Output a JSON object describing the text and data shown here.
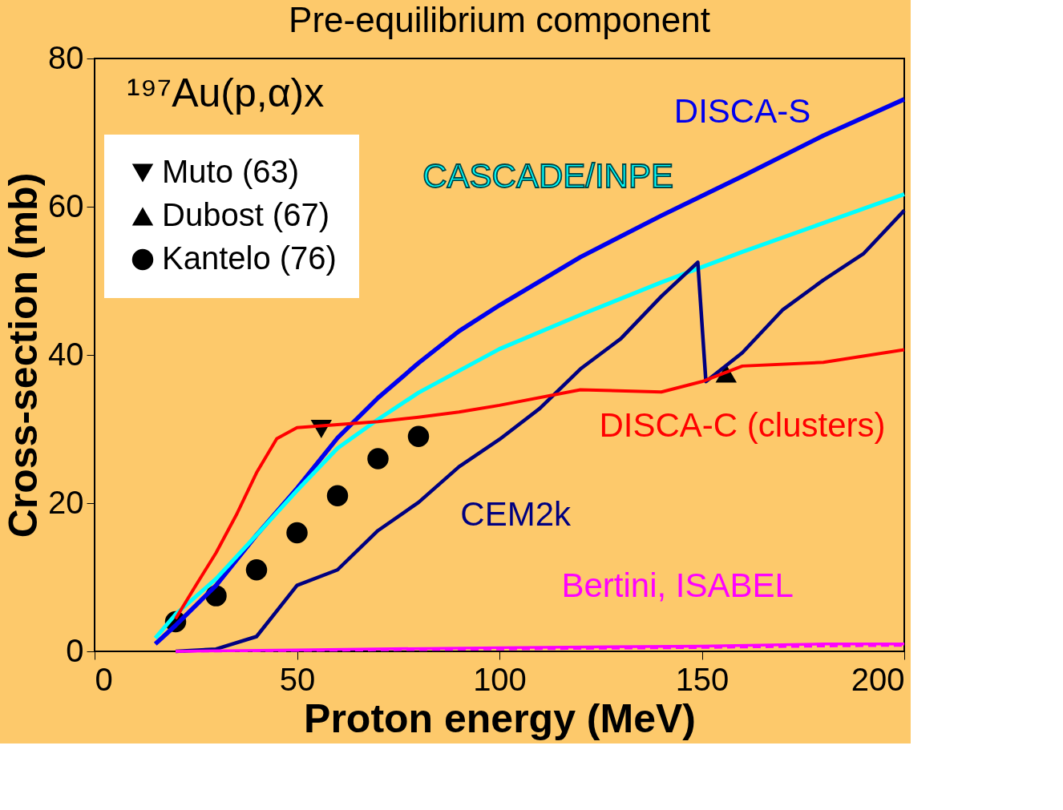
{
  "chart_data": {
    "type": "line",
    "title": "Pre-equilibrium component",
    "xlabel": "Proton energy (MeV)",
    "ylabel": "Cross-section (mb)",
    "xlim": [
      0,
      200
    ],
    "xticks": [
      0,
      50,
      100,
      150,
      200
    ],
    "ylim": [
      0,
      80
    ],
    "yticks": [
      0,
      20,
      40,
      60,
      80
    ],
    "grid": false,
    "legend": "top left",
    "annotations": [
      "¹⁹⁷Au(p,α)x"
    ],
    "series": [
      {
        "name": "DISCA-S",
        "color": "#0000ee",
        "type": "line",
        "line_style": "solid",
        "x": [
          15,
          20,
          30,
          40,
          50,
          60,
          70,
          80,
          90,
          100,
          120,
          140,
          160,
          180,
          200
        ],
        "values": [
          1,
          3.5,
          8.9,
          15.7,
          22,
          28.8,
          34.2,
          38.9,
          43.2,
          46.7,
          53.2,
          58.8,
          64.1,
          69.6,
          74.5
        ]
      },
      {
        "name": "CASCADE/INPE",
        "color": "#00ffff",
        "type": "line",
        "line_style": "solid",
        "x": [
          15,
          20,
          30,
          40,
          50,
          60,
          70,
          80,
          100,
          120,
          140,
          160,
          180,
          200
        ],
        "values": [
          1.8,
          5,
          9.8,
          15.7,
          21.7,
          27.4,
          31.3,
          34.9,
          40.8,
          45.4,
          49.8,
          53.9,
          57.8,
          61.7
        ]
      },
      {
        "name": "CEM2k",
        "color": "#000080",
        "type": "line",
        "line_style": "solid",
        "x": [
          20,
          30,
          40,
          50,
          60,
          70,
          80,
          90,
          100,
          110,
          120,
          130,
          140,
          149,
          151,
          160,
          170,
          180,
          190,
          200
        ],
        "values": [
          0,
          0.3,
          2,
          8.9,
          11,
          16.3,
          20.1,
          24.9,
          28.6,
          32.8,
          38.1,
          42.2,
          47.9,
          52.5,
          36.4,
          40.3,
          46.1,
          50.1,
          53.7,
          59.5
        ]
      },
      {
        "name": "DISCA-C (clusters)",
        "color": "#ff0000",
        "type": "line",
        "line_style": "solid",
        "x": [
          20,
          25,
          30,
          35,
          40,
          45,
          50,
          60,
          70,
          80,
          90,
          100,
          120,
          140,
          150,
          160,
          180,
          200
        ],
        "values": [
          4.4,
          8.9,
          13.3,
          18.4,
          24.1,
          28.7,
          30.2,
          30.6,
          31,
          31.6,
          32.3,
          33.2,
          35.3,
          35,
          36.4,
          38.5,
          39,
          40.7
        ]
      },
      {
        "name": "Bertini, ISABEL",
        "color": "#ff00ff",
        "type": "line",
        "line_style": "solid",
        "x": [
          20,
          50,
          100,
          150,
          180,
          200
        ],
        "values": [
          0,
          0.2,
          0.5,
          0.7,
          1,
          1
        ]
      },
      {
        "color": "#ff00ff",
        "type": "line",
        "line_style": "dashed",
        "x": [
          20,
          50,
          100,
          150,
          180,
          200
        ],
        "values": [
          0,
          0.1,
          0.3,
          0.5,
          0.7,
          0.8
        ]
      },
      {
        "name": "Muto (63)",
        "color": "#000000",
        "type": "scatter",
        "marker": "triangle-down",
        "x": [
          56
        ],
        "values": [
          30
        ]
      },
      {
        "name": "Dubost (67)",
        "color": "#000000",
        "type": "scatter",
        "marker": "triangle",
        "x": [
          156
        ],
        "values": [
          37.5
        ]
      },
      {
        "name": "Kantelo (76)",
        "color": "#000000",
        "type": "scatter",
        "marker": "circle",
        "x": [
          20,
          30,
          40,
          50,
          60,
          70,
          80
        ],
        "values": [
          4,
          7.5,
          11,
          16,
          21,
          26,
          29
        ]
      }
    ]
  }
}
